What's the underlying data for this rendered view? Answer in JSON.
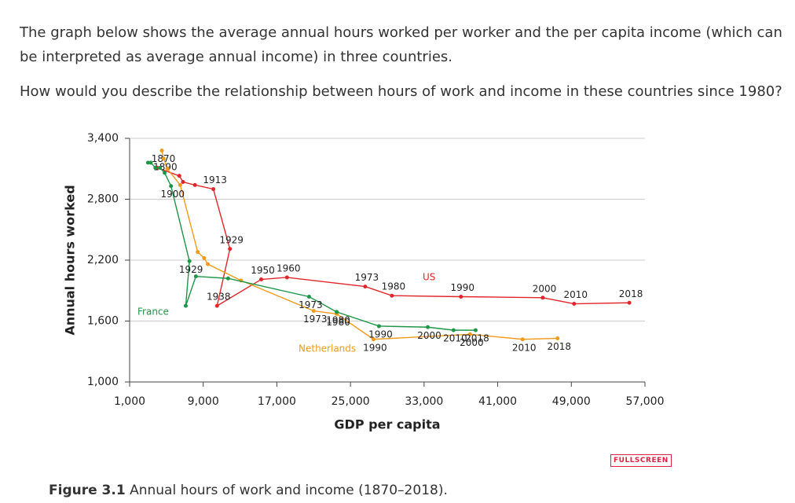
{
  "page": {
    "intro": "The graph below shows the average annual hours worked per worker and the per capita income (which can be interpreted as average annual income) in three countries.",
    "question": "How would you describe the relationship between hours of work and income in these countries since 1980?",
    "figure_label": "Figure 3.1",
    "caption": "Annual hours of work and income (1870–2018).",
    "button": "FULLSCREEN"
  },
  "chart_data": {
    "type": "line",
    "x_label": "GDP per capita",
    "y_label": "Annual hours worked",
    "xlim": [
      1000,
      57000
    ],
    "xticks": [
      {
        "value": 1000,
        "label": "1,000"
      },
      {
        "value": 9000,
        "label": "9,000"
      },
      {
        "value": 17000,
        "label": "17,000"
      },
      {
        "value": 25000,
        "label": "25,000"
      },
      {
        "value": 33000,
        "label": "33,000"
      },
      {
        "value": 41000,
        "label": "41,000"
      },
      {
        "value": 49000,
        "label": "49,000"
      },
      {
        "value": 57000,
        "label": "57,000"
      }
    ],
    "ylim": [
      1000,
      3400
    ],
    "yticks": [
      {
        "value": 1000,
        "label": "1,000"
      },
      {
        "value": 1600,
        "label": "1,600"
      },
      {
        "value": 2200,
        "label": "2,200"
      },
      {
        "value": 2800,
        "label": "2,800"
      },
      {
        "value": 3400,
        "label": "3,400"
      }
    ],
    "grid": true,
    "series": [
      {
        "name": "US",
        "color": "#e0262b",
        "x": [
          4000,
          6400,
          6800,
          8100,
          10100,
          11900,
          10500,
          15300,
          18100,
          26600,
          29500,
          37000,
          45900,
          49300,
          55300
        ],
        "values": [
          3110,
          3030,
          2970,
          2940,
          2900,
          2310,
          1750,
          2010,
          2030,
          1940,
          1850,
          1840,
          1830,
          1770,
          1780
        ],
        "point_labels": [
          null,
          null,
          null,
          null,
          "1913",
          "1929",
          "1938",
          "1950",
          "1960",
          "1973",
          "1980",
          "1990",
          "2000",
          "2010",
          "2018"
        ]
      },
      {
        "name": "Netherlands",
        "color": "#f29a1c",
        "x": [
          4500,
          4700,
          5100,
          6500,
          8400,
          9100,
          9500,
          13100,
          21000,
          23500,
          27500,
          38000,
          43700,
          47500
        ],
        "values": [
          3280,
          3200,
          3100,
          2940,
          2280,
          2220,
          2160,
          2000,
          1700,
          1670,
          1420,
          1470,
          1420,
          1430
        ],
        "point_labels": [
          "1870",
          "1890",
          null,
          null,
          null,
          null,
          null,
          null,
          "1973",
          "1980",
          "1990",
          "2000",
          "2010",
          "2018"
        ]
      },
      {
        "name": "France",
        "color": "#1e9647",
        "x": [
          3000,
          3300,
          3800,
          4300,
          4800,
          5500,
          7500,
          7100,
          8200,
          11700,
          20500,
          23500,
          28100,
          33400,
          36200,
          38600
        ],
        "values": [
          3160,
          3160,
          3110,
          3110,
          3060,
          2930,
          2190,
          1750,
          2040,
          2020,
          1840,
          1690,
          1550,
          1540,
          1510,
          1510
        ],
        "point_labels": [
          null,
          null,
          null,
          null,
          null,
          "1900",
          "1929",
          null,
          null,
          null,
          "1973",
          "1980",
          "1990",
          "2000",
          "2010",
          "2018"
        ]
      }
    ]
  }
}
